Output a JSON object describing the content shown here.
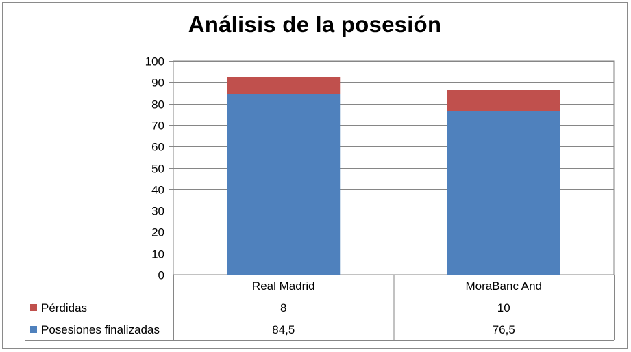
{
  "chart_data": {
    "type": "bar",
    "stacked": true,
    "title": "Análisis de la posesión",
    "categories": [
      "Real Madrid",
      "MoraBanc And"
    ],
    "series": [
      {
        "name": "Posesiones finalizadas",
        "values": [
          84.5,
          76.5
        ],
        "value_labels": [
          "84,5",
          "76,5"
        ],
        "color": "#4F81BD"
      },
      {
        "name": "Pérdidas",
        "values": [
          8,
          10
        ],
        "value_labels": [
          "8",
          "10"
        ],
        "color": "#C0504D"
      }
    ],
    "ylim": [
      0,
      100
    ],
    "yticks": [
      0,
      10,
      20,
      30,
      40,
      50,
      60,
      70,
      80,
      90,
      100
    ],
    "grid": true,
    "legend": "data-table",
    "table_row_order": [
      "Pérdidas",
      "Posesiones finalizadas"
    ]
  }
}
